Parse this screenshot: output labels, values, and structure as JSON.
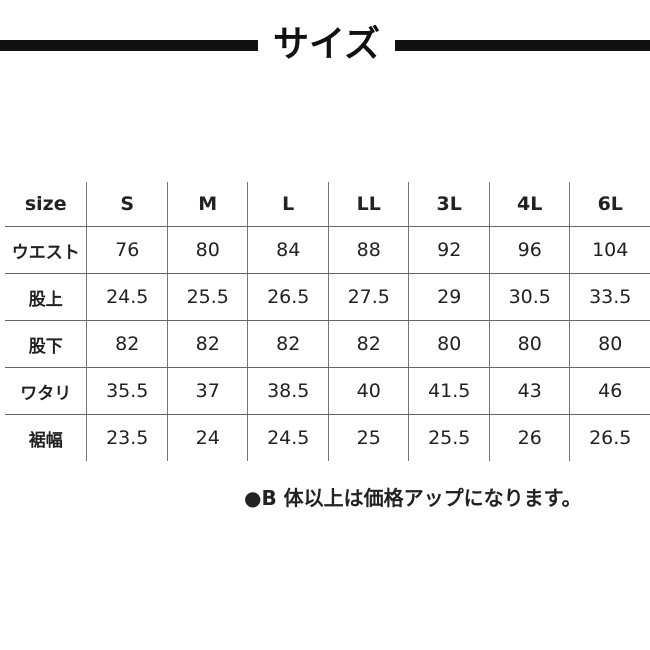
{
  "title": "サイズ",
  "table": {
    "header": [
      "size",
      "S",
      "M",
      "L",
      "LL",
      "3L",
      "4L",
      "6L"
    ],
    "rows": [
      [
        "ウエスト",
        "76",
        "80",
        "84",
        "88",
        "92",
        "96",
        "104"
      ],
      [
        "股上",
        "24.5",
        "25.5",
        "26.5",
        "27.5",
        "29",
        "30.5",
        "33.5"
      ],
      [
        "股下",
        "82",
        "82",
        "82",
        "82",
        "80",
        "80",
        "80"
      ],
      [
        "ワタリ",
        "35.5",
        "37",
        "38.5",
        "40",
        "41.5",
        "43",
        "46"
      ],
      [
        "裾幅",
        "23.5",
        "24",
        "24.5",
        "25",
        "25.5",
        "26",
        "26.5"
      ]
    ]
  },
  "note": "●B 体以上は価格アップになります。"
}
